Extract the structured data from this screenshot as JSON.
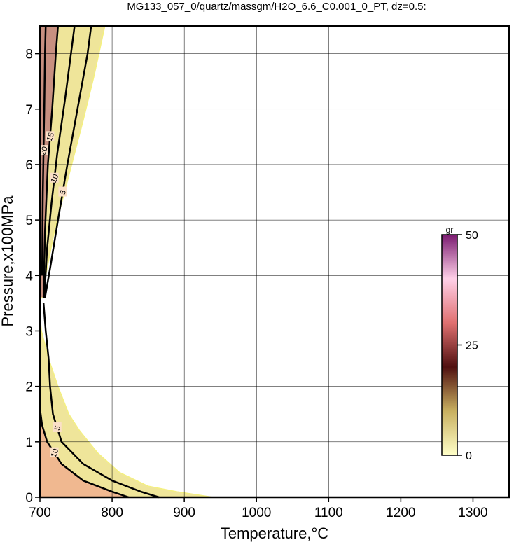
{
  "chart_data": {
    "type": "contour",
    "title": "MG133_057_0/quartz/massgm/H2O_6.6_C0.001_0_PT, dz=0.5:",
    "xlabel": "Temperature,°C",
    "ylabel": "Pressure,x100MPa",
    "xlim": [
      700,
      1350
    ],
    "ylim": [
      0,
      8.5
    ],
    "xticks": [
      700,
      800,
      900,
      1000,
      1100,
      1200,
      1300
    ],
    "yticks": [
      0,
      1,
      2,
      3,
      4,
      5,
      6,
      7,
      8
    ],
    "grid": true,
    "regions": [
      {
        "color": "#efe59a",
        "x": [
          700,
          705,
          720,
          740,
          760,
          775,
          790,
          700
        ],
        "y": [
          3.5,
          3.8,
          4.8,
          5.8,
          6.8,
          7.6,
          8.5,
          8.5
        ]
      },
      {
        "color": "#efe59a",
        "x": [
          700,
          702,
          712,
          725,
          740,
          755,
          780,
          810,
          850,
          890,
          940,
          700
        ],
        "y": [
          3.3,
          3.0,
          2.5,
          2.0,
          1.5,
          1.2,
          0.8,
          0.45,
          0.2,
          0.1,
          0,
          0
        ]
      },
      {
        "color": "#f0b890",
        "x": [
          700,
          703,
          710,
          730,
          760,
          800,
          823,
          700
        ],
        "y": [
          1.6,
          1.3,
          1.0,
          0.6,
          0.3,
          0.1,
          0,
          0
        ]
      },
      {
        "color": "#c89080",
        "x": [
          705,
          707,
          711,
          717,
          722,
          725,
          700,
          700
        ],
        "y": [
          3.6,
          4.8,
          6.0,
          7.0,
          8.0,
          8.5,
          8.5,
          3.6
        ]
      }
    ],
    "contours": [
      {
        "level": 5,
        "x": [
          707,
          715,
          725,
          738,
          752,
          766,
          771
        ],
        "y": [
          3.6,
          4.2,
          5.0,
          6.0,
          7.0,
          8.0,
          8.5
        ]
      },
      {
        "level": 10,
        "x": [
          706,
          710,
          716,
          724,
          735,
          748
        ],
        "y": [
          3.6,
          4.5,
          5.3,
          6.2,
          7.2,
          8.5
        ]
      },
      {
        "level": 15,
        "x": [
          705,
          707,
          711,
          717,
          722,
          725
        ],
        "y": [
          3.6,
          4.8,
          6.0,
          7.0,
          8.0,
          8.5
        ]
      },
      {
        "level": 20,
        "x": [
          703,
          704,
          706,
          707,
          708
        ],
        "y": [
          4.0,
          5.5,
          7.0,
          8.0,
          8.5
        ]
      },
      {
        "level": 5,
        "x": [
          705,
          708,
          712,
          714,
          718,
          730,
          760,
          800,
          840,
          865
        ],
        "y": [
          3.5,
          3.0,
          2.5,
          2.0,
          1.5,
          1.0,
          0.6,
          0.3,
          0.1,
          0
        ]
      },
      {
        "level": 10,
        "x": [
          700,
          703,
          710,
          730,
          760,
          800,
          823
        ],
        "y": [
          1.6,
          1.3,
          1.0,
          0.6,
          0.3,
          0.1,
          0
        ]
      }
    ],
    "colorbar": {
      "label": "gr",
      "clim": [
        0,
        50
      ],
      "ticks": [
        0,
        25,
        50
      ],
      "colors": [
        "#ffffc8",
        "#c8b060",
        "#501010",
        "#e07070",
        "#ffd0e8",
        "#7a1a70"
      ]
    }
  }
}
